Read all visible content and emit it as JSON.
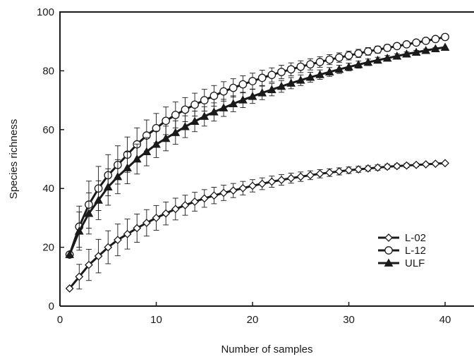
{
  "chart_data": {
    "type": "line",
    "title": "",
    "xlabel": "Number of samples",
    "ylabel": "Species richness",
    "xlim": [
      0,
      43
    ],
    "ylim": [
      0,
      100
    ],
    "xticks": [
      0,
      10,
      20,
      30,
      40
    ],
    "yticks": [
      0,
      20,
      40,
      60,
      80,
      100
    ],
    "grid": false,
    "legend_position": "bottom-right",
    "x": [
      1,
      2,
      3,
      4,
      5,
      6,
      7,
      8,
      9,
      10,
      11,
      12,
      13,
      14,
      15,
      16,
      17,
      18,
      19,
      20,
      21,
      22,
      23,
      24,
      25,
      26,
      27,
      28,
      29,
      30,
      31,
      32,
      33,
      34,
      35,
      36,
      37,
      38,
      39,
      40
    ],
    "series": [
      {
        "name": "L-02",
        "marker": "diamond-open",
        "color": "#1a1a1a",
        "values": [
          6,
          10,
          14,
          17,
          20,
          22.5,
          24.5,
          26.5,
          28.3,
          30,
          31.5,
          33,
          34.3,
          35.5,
          36.6,
          37.6,
          38.5,
          39.3,
          40.1,
          40.9,
          41.6,
          42.3,
          42.9,
          43.5,
          44,
          44.5,
          45,
          45.4,
          45.8,
          46.2,
          46.5,
          46.8,
          47.1,
          47.4,
          47.6,
          47.8,
          48,
          48.2,
          48.4,
          48.6
        ],
        "errors": [
          0,
          4.2,
          5.3,
          5.7,
          5.6,
          5.4,
          5.1,
          4.8,
          4.5,
          4.2,
          3.9,
          3.7,
          3.4,
          3.2,
          3,
          2.8,
          2.6,
          2.4,
          2.3,
          2.1,
          2,
          1.9,
          1.8,
          1.7,
          1.6,
          1.5,
          1.4,
          1.3,
          1.2,
          1.1,
          1,
          0.9,
          0.9,
          0.8,
          0.7,
          0.7,
          0.6,
          0.5,
          0.5,
          0
        ]
      },
      {
        "name": "L-12",
        "marker": "circle-open",
        "color": "#1a1a1a",
        "values": [
          17.5,
          27,
          34.5,
          40,
          44.5,
          48,
          51.5,
          55,
          58,
          60.5,
          63,
          65,
          66.8,
          68.5,
          70,
          71.5,
          73,
          74.2,
          75.4,
          76.5,
          77.6,
          78.6,
          79.6,
          80.5,
          81.4,
          82.2,
          83,
          83.8,
          84.5,
          85.2,
          85.9,
          86.6,
          87.2,
          87.8,
          88.4,
          89,
          89.6,
          90.2,
          90.8,
          91.5
        ],
        "errors": [
          0,
          7,
          8,
          7.5,
          7,
          6.5,
          6,
          5.6,
          5.3,
          5,
          4.7,
          4.4,
          4.1,
          3.9,
          3.7,
          3.5,
          3.3,
          3.1,
          2.9,
          2.7,
          2.6,
          2.4,
          2.3,
          2.2,
          2,
          1.9,
          1.8,
          1.7,
          1.6,
          1.5,
          1.4,
          1.3,
          1.2,
          1.1,
          1,
          0.9,
          0.8,
          0.7,
          0.6,
          0
        ]
      },
      {
        "name": "ULF",
        "marker": "triangle-filled",
        "color": "#1a1a1a",
        "values": [
          17.5,
          25.5,
          31.5,
          36,
          40.5,
          44,
          47,
          50,
          52.5,
          55,
          57,
          59,
          61,
          62.8,
          64.5,
          66,
          67.4,
          68.8,
          70.1,
          71.3,
          72.5,
          73.6,
          74.7,
          75.8,
          76.8,
          77.8,
          78.7,
          79.6,
          80.5,
          81.3,
          82.1,
          82.9,
          83.6,
          84.3,
          85,
          85.7,
          86.3,
          86.9,
          87.5,
          88
        ],
        "errors": [
          0,
          6.5,
          7,
          6.6,
          6.2,
          5.8,
          5.4,
          5.1,
          4.8,
          4.5,
          4.2,
          4,
          3.7,
          3.5,
          3.3,
          3.1,
          2.9,
          2.7,
          2.6,
          2.4,
          2.3,
          2.1,
          2,
          1.9,
          1.8,
          1.7,
          1.6,
          1.5,
          1.4,
          1.3,
          1.2,
          1.1,
          1,
          0.9,
          0.8,
          0.7,
          0.6,
          0.5,
          0.4,
          0
        ]
      }
    ]
  }
}
